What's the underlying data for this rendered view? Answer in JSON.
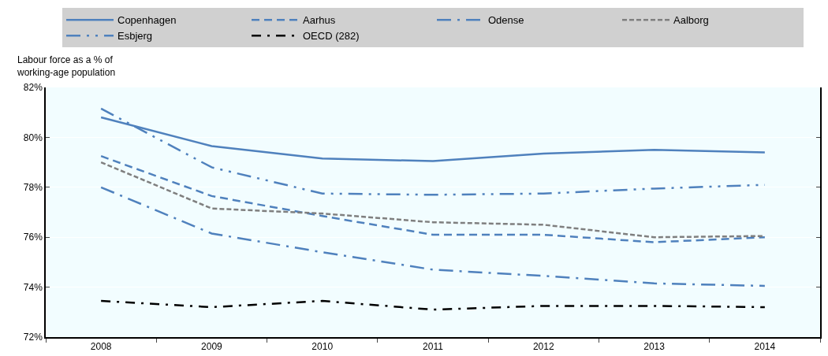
{
  "chart_data": {
    "type": "line",
    "ylabel": "Labour force as a % of\nworking-age population",
    "categories": [
      "2008",
      "2009",
      "2010",
      "2011",
      "2012",
      "2013",
      "2014"
    ],
    "series": [
      {
        "name": "Copenhagen",
        "color": "#4f81bd",
        "line_style": "solid",
        "values": [
          80.8,
          79.65,
          79.15,
          79.05,
          79.35,
          79.5,
          79.4
        ]
      },
      {
        "name": "Aarhus",
        "color": "#4f81bd",
        "line_style": "dashed",
        "values": [
          79.25,
          77.65,
          76.85,
          76.1,
          76.1,
          75.8,
          76.0
        ]
      },
      {
        "name": "Odense",
        "color": "#4f81bd",
        "line_style": "longdashdot",
        "values": [
          78.0,
          76.15,
          75.4,
          74.7,
          74.45,
          74.15,
          74.05
        ]
      },
      {
        "name": "Aalborg",
        "color": "#7f7f7f",
        "line_style": "dotted",
        "values": [
          79.0,
          77.15,
          76.95,
          76.6,
          76.5,
          76.0,
          76.05
        ]
      },
      {
        "name": "Esbjerg",
        "color": "#4f81bd",
        "line_style": "dashdotdot",
        "values": [
          81.15,
          78.8,
          77.75,
          77.7,
          77.75,
          77.95,
          78.1
        ]
      },
      {
        "name": "OECD (282)",
        "color": "#000000",
        "line_style": "dashdot",
        "values": [
          73.45,
          73.2,
          73.45,
          73.1,
          73.25,
          73.25,
          73.2
        ]
      }
    ],
    "ylim": [
      72,
      82
    ],
    "yticks": [
      {
        "value": 72,
        "label": "72%"
      },
      {
        "value": 74,
        "label": "74%"
      },
      {
        "value": 76,
        "label": "76%"
      },
      {
        "value": 78,
        "label": "78%"
      },
      {
        "value": 80,
        "label": "80%"
      },
      {
        "value": 82,
        "label": "82%"
      }
    ],
    "grid": "y",
    "legend": "top",
    "marker": "none"
  }
}
